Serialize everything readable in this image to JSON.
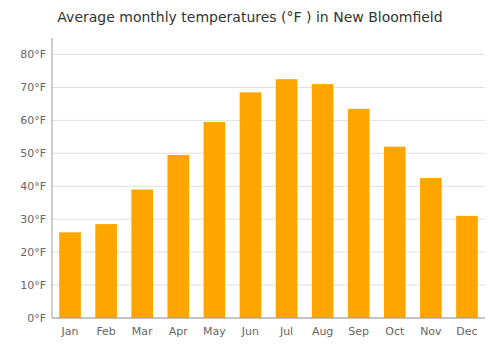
{
  "chart_data": {
    "type": "bar",
    "title": "Average monthly temperatures (°F ) in New Bloomfield",
    "categories": [
      "Jan",
      "Feb",
      "Mar",
      "Apr",
      "May",
      "Jun",
      "Jul",
      "Aug",
      "Sep",
      "Oct",
      "Nov",
      "Dec"
    ],
    "values": [
      26,
      28.5,
      39,
      49.5,
      59.5,
      68.5,
      72.5,
      71,
      63.5,
      52,
      42.5,
      31
    ],
    "color": "#FFA500",
    "ylim": [
      0,
      85
    ],
    "yticks": [
      {
        "value": 0,
        "label": "0°F"
      },
      {
        "value": 10,
        "label": "10°F"
      },
      {
        "value": 20,
        "label": "20°F"
      },
      {
        "value": 30,
        "label": "30°F"
      },
      {
        "value": 40,
        "label": "40°F"
      },
      {
        "value": 50,
        "label": "50°F"
      },
      {
        "value": 60,
        "label": "60°F"
      },
      {
        "value": 70,
        "label": "70°F"
      },
      {
        "value": 80,
        "label": "80°F"
      }
    ],
    "grid": true
  }
}
